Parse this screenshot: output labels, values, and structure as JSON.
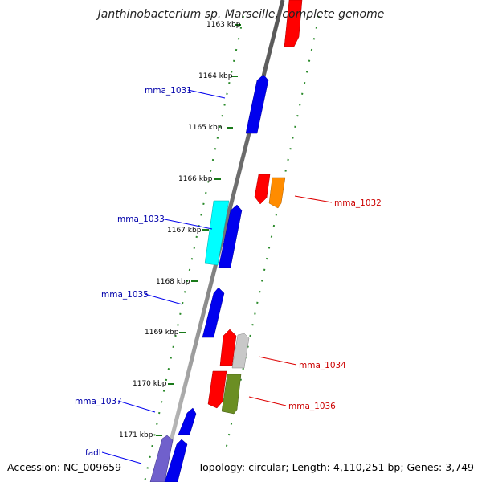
{
  "title": "Janthinobacterium sp. Marseille, complete genome",
  "ticks": [
    "1163 kbp",
    "1164 kbp",
    "1165 kbp",
    "1166 kbp",
    "1167 kbp",
    "1168 kbp",
    "1169 kbp",
    "1170 kbp",
    "1171 kbp"
  ],
  "genes": {
    "mma_1031": "mma_1031",
    "mma_1032": "mma_1032",
    "mma_1033": "mma_1033",
    "mma_1034": "mma_1034",
    "mma_1035": "mma_1035",
    "mma_1036": "mma_1036",
    "mma_1037": "mma_1037",
    "fadL": "fadL"
  },
  "footer": {
    "accession": "Accession: NC_009659",
    "topology": "Topology: circular; Length: 4,110,251 bp; Genes: 3,749"
  },
  "colors": {
    "backbone": "#777777",
    "guide": "#2a8a2a",
    "forward_label": "#cc0000",
    "reverse_label": "#0000aa"
  }
}
